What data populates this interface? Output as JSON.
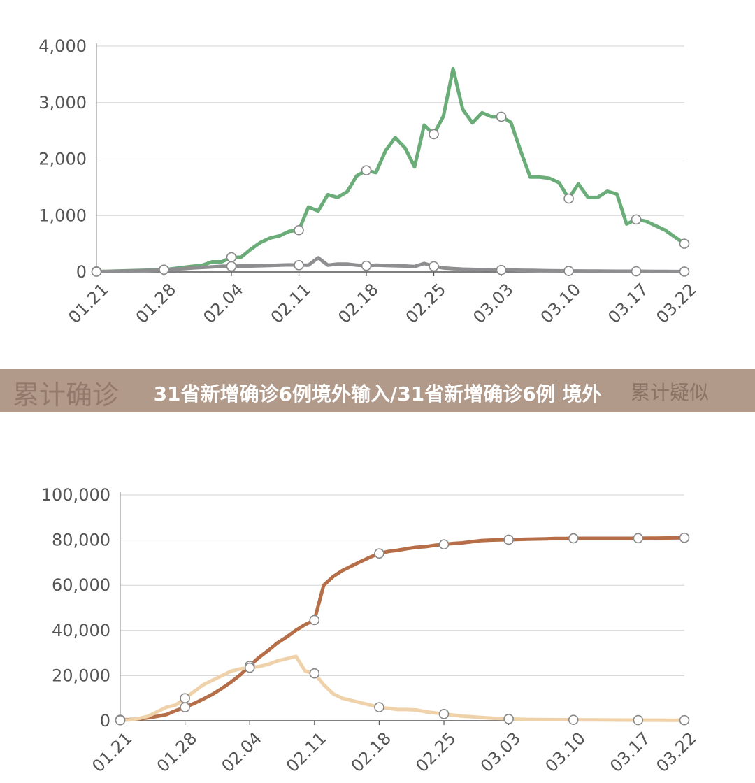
{
  "chart_data": [
    {
      "type": "line",
      "x": [
        "01.21",
        "01.22",
        "01.23",
        "01.24",
        "01.25",
        "01.26",
        "01.27",
        "01.28",
        "01.29",
        "01.30",
        "01.31",
        "02.01",
        "02.02",
        "02.03",
        "02.04",
        "02.05",
        "02.06",
        "02.07",
        "02.08",
        "02.09",
        "02.10",
        "02.11",
        "02.12",
        "02.13",
        "02.14",
        "02.15",
        "02.16",
        "02.17",
        "02.18",
        "02.19",
        "02.20",
        "02.21",
        "02.22",
        "02.23",
        "02.24",
        "02.25",
        "02.26",
        "02.27",
        "02.28",
        "02.29",
        "03.01",
        "03.02",
        "03.03",
        "03.04",
        "03.05",
        "03.06",
        "03.07",
        "03.08",
        "03.09",
        "03.10",
        "03.11",
        "03.12",
        "03.13",
        "03.14",
        "03.15",
        "03.16",
        "03.17",
        "03.18",
        "03.19",
        "03.20",
        "03.21",
        "03.22"
      ],
      "tick_labels": [
        "01.21",
        "01.28",
        "02.04",
        "02.11",
        "02.18",
        "02.25",
        "03.03",
        "03.10",
        "03.17",
        "03.22"
      ],
      "ylim": [
        0,
        4000
      ],
      "yticks": [
        "0",
        "1,000",
        "2,000",
        "3,000",
        "4,000"
      ],
      "grid": true,
      "series": [
        {
          "color": "#6aad79",
          "values": [
            10,
            10,
            15,
            20,
            25,
            30,
            35,
            40,
            60,
            80,
            100,
            120,
            180,
            180,
            260,
            260,
            400,
            520,
            600,
            640,
            720,
            740,
            1150,
            1080,
            1370,
            1320,
            1420,
            1700,
            1800,
            1760,
            2150,
            2380,
            2200,
            1860,
            2600,
            2440,
            2760,
            3600,
            2880,
            2640,
            2820,
            2750,
            2750,
            2650,
            2150,
            1680,
            1680,
            1660,
            1580,
            1300,
            1560,
            1320,
            1320,
            1430,
            1380,
            850,
            930,
            900,
            820,
            740,
            620,
            500
          ]
        },
        {
          "color": "#8e8e91",
          "values": [
            5,
            8,
            10,
            15,
            20,
            25,
            30,
            40,
            50,
            60,
            70,
            80,
            90,
            100,
            100,
            105,
            105,
            110,
            115,
            120,
            125,
            120,
            120,
            250,
            120,
            140,
            140,
            120,
            110,
            120,
            115,
            110,
            105,
            95,
            150,
            100,
            70,
            60,
            50,
            45,
            40,
            35,
            35,
            33,
            30,
            28,
            25,
            22,
            20,
            18,
            17,
            16,
            15,
            14,
            13,
            12,
            12,
            11,
            10,
            9,
            8,
            7
          ]
        }
      ]
    },
    {
      "type": "line",
      "x": [
        "01.21",
        "01.22",
        "01.23",
        "01.24",
        "01.25",
        "01.26",
        "01.27",
        "01.28",
        "01.29",
        "01.30",
        "01.31",
        "02.01",
        "02.02",
        "02.03",
        "02.04",
        "02.05",
        "02.06",
        "02.07",
        "02.08",
        "02.09",
        "02.10",
        "02.11",
        "02.12",
        "02.13",
        "02.14",
        "02.15",
        "02.16",
        "02.17",
        "02.18",
        "02.19",
        "02.20",
        "02.21",
        "02.22",
        "02.23",
        "02.24",
        "02.25",
        "02.26",
        "02.27",
        "02.28",
        "02.29",
        "03.01",
        "03.02",
        "03.03",
        "03.04",
        "03.05",
        "03.06",
        "03.07",
        "03.08",
        "03.09",
        "03.10",
        "03.11",
        "03.12",
        "03.13",
        "03.14",
        "03.15",
        "03.16",
        "03.17",
        "03.18",
        "03.19",
        "03.20",
        "03.21",
        "03.22"
      ],
      "tick_labels": [
        "01.21",
        "01.28",
        "02.04",
        "02.11",
        "02.18",
        "02.25",
        "03.03",
        "03.10",
        "03.17",
        "03.22"
      ],
      "ylim": [
        0,
        100000
      ],
      "yticks": [
        "0",
        "20,000",
        "40,000",
        "60,000",
        "80,000",
        "100,000"
      ],
      "grid": true,
      "series": [
        {
          "color": "#b56e47",
          "values": [
            440,
            570,
            830,
            1290,
            1970,
            2740,
            4500,
            5970,
            7710,
            9690,
            11790,
            14380,
            17200,
            20440,
            24320,
            28020,
            31100,
            34500,
            37100,
            40100,
            42600,
            44600,
            60000,
            63800,
            66500,
            68500,
            70500,
            72400,
            74100,
            75000,
            75500,
            76200,
            76800,
            77100,
            77700,
            78100,
            78500,
            78800,
            79300,
            79800,
            80000,
            80100,
            80200,
            80300,
            80400,
            80500,
            80600,
            80700,
            80700,
            80800,
            80800,
            80800,
            80800,
            80800,
            80800,
            80800,
            80850,
            80900,
            80900,
            80950,
            81000,
            81050
          ]
        },
        {
          "color": "#efd2aa",
          "values": [
            200,
            400,
            1000,
            2000,
            4000,
            6000,
            7000,
            10000,
            13000,
            16000,
            18000,
            20000,
            22000,
            23000,
            23500,
            24000,
            25000,
            26500,
            27500,
            28500,
            22000,
            21000,
            16000,
            12000,
            10000,
            9000,
            8000,
            7000,
            6000,
            5500,
            5000,
            5000,
            4800,
            4000,
            3500,
            3000,
            2500,
            2000,
            1800,
            1500,
            1200,
            1000,
            800,
            700,
            600,
            550,
            500,
            480,
            450,
            420,
            400,
            380,
            360,
            340,
            320,
            300,
            290,
            280,
            270,
            260,
            250,
            240
          ]
        }
      ]
    }
  ],
  "banner": {
    "caption": "31省新增确诊6例境外输入/31省新增确诊6例 境外",
    "bg_left": "累计确诊",
    "bg_right": "累计疑似"
  }
}
